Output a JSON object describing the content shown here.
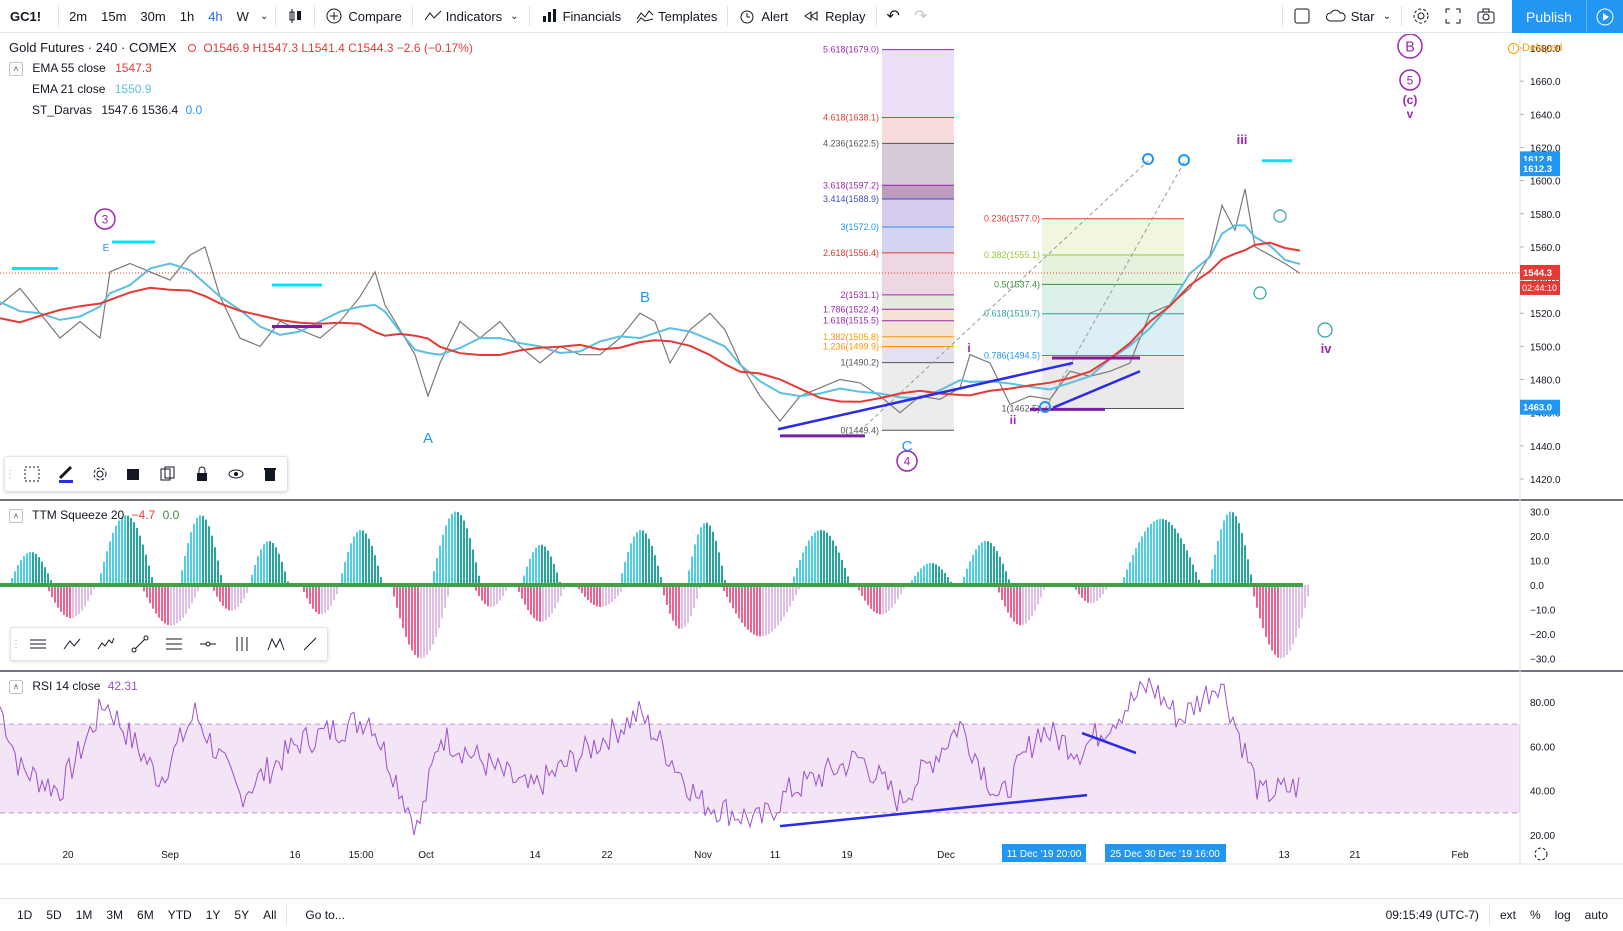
{
  "toolbar": {
    "symbol": "GC1!",
    "intervals": [
      "2m",
      "15m",
      "30m",
      "1h",
      "4h",
      "W"
    ],
    "active_interval": "4h",
    "compare": "Compare",
    "indicators": "Indicators",
    "financials": "Financials",
    "templates": "Templates",
    "alert": "Alert",
    "replay": "Replay",
    "star": "Star",
    "publish": "Publish"
  },
  "legend": {
    "title": "Gold Futures · 240 · COMEX",
    "ohlc": "O1546.9  H1547.3  L1541.4  C1544.3  −2.6 (−0.17%)",
    "ema55_label": "EMA 55 close",
    "ema55_value": "1547.3",
    "ema21_label": "EMA 21 close",
    "ema21_value": "1550.9",
    "darvas_label": "ST_Darvas",
    "darvas_values": "1547.6  1536.4",
    "darvas_zero": "0.0",
    "delayed": "Delayed"
  },
  "ttm": {
    "label": "TTM Squeeze 20",
    "v1": "−4.7",
    "v2": "0.0"
  },
  "rsi": {
    "label": "RSI 14 close",
    "value": "42.31"
  },
  "price_axis": [
    "1680.0",
    "1660.0",
    "1640.0",
    "1620.0",
    "1600.0",
    "1580.0",
    "1560.0",
    "1540.0",
    "1520.0",
    "1500.0",
    "1480.0",
    "1460.0",
    "1440.0",
    "1420.0"
  ],
  "price_tags": {
    "p1": "1612.8",
    "p2": "1612.3",
    "last": "1544.3",
    "countdown": "02:44:10",
    "low": "1463.0"
  },
  "ttm_axis": [
    "30.0",
    "20.0",
    "10.0",
    "0.0",
    "−10.0",
    "−20.0",
    "−30.0"
  ],
  "rsi_axis": [
    "80.00",
    "60.00",
    "40.00",
    "20.00"
  ],
  "time_axis": [
    "20",
    "Sep",
    "16",
    "15:00",
    "Oct",
    "14",
    "22",
    "Nov",
    "11",
    "19",
    "Dec",
    "21",
    "Feb"
  ],
  "time_tags": [
    "11 Dec '19   20:00",
    "25 Dec   30 Dec '19   16:00"
  ],
  "time_axis_extra": "13",
  "fib_left": [
    "5.618(1679.0)",
    "4.618(1638.1)",
    "4.236(1622.5)",
    "3.618(1597.2)",
    "3.414(1588.9)",
    "3(1572.0)",
    "2.618(1556.4)",
    "2(1531.1)",
    "1.786(1522.4)",
    "1.618(1515.5)",
    "1.382(1505.8)",
    "1.236(1499.9)",
    "1(1490.2)",
    "0(1449.4)"
  ],
  "fib_right": [
    "0.236(1577.0)",
    "0.382(1555.1)",
    "0.5(1537.4)",
    "0.618(1519.7)",
    "0.786(1494.5)",
    "1(1462.5)"
  ],
  "waves": {
    "big_B": "B",
    "big_5": "5",
    "c_paren": "(c)",
    "v": "v",
    "iii": "iii",
    "iv": "iv",
    "ii": "ii",
    "i": "i",
    "A": "A",
    "B": "B",
    "C": "C",
    "four": "4",
    "three": "3",
    "E": "E"
  },
  "bottom": {
    "ranges": [
      "1D",
      "5D",
      "1M",
      "3M",
      "6M",
      "YTD",
      "1Y",
      "5Y",
      "All"
    ],
    "goto": "Go to...",
    "time": "09:15:49 (UTC-7)",
    "ext": "ext",
    "pct": "%",
    "log": "log",
    "auto": "auto"
  },
  "colors": {
    "ema55": "#e53935",
    "ema21": "#5bc0de",
    "fib_purple": "#9c27b0",
    "accent": "#2196f3",
    "rsi": "#9c4fd0"
  }
}
